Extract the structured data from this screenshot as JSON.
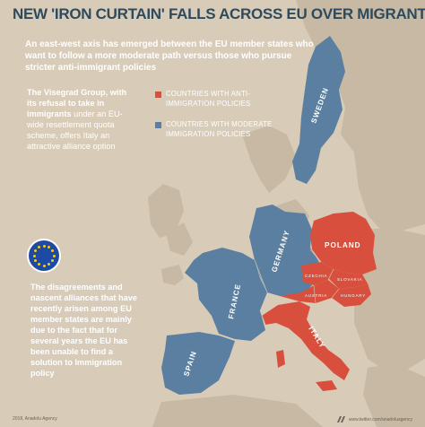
{
  "title": "NEW 'IRON CURTAIN' FALLS ACROSS EU OVER MIGRANT CRISIS",
  "subtitle": "An east-west axis has emerged between the EU member states who want to follow a more moderate path versus those who pursue stricter anti-immigrant policies",
  "visegrad": {
    "bold": "The Visegrad Group, with its refusal to take in immigrants",
    "rest": "under an EU-wide resettlement quota scheme, offers Italy an attractive alliance option"
  },
  "legend": [
    {
      "label": "COUNTRIES WITH ANTI-IMMIGRATION POLICIES",
      "color": "#d94f3d"
    },
    {
      "label": "COUNTRIES WITH MODERATE IMMIGRATION POLICIES",
      "color": "#5b7fa0"
    }
  ],
  "closing_text": "The disagreements and nascent alliances that have recently arisen among EU member states are mainly due to the fact that for several years the EU has been unable to find a solution to Immigration policy",
  "countries": {
    "sweden": "SWEDEN",
    "poland": "POLAND",
    "germany": "GERMANY",
    "czechia": "CZECHIA",
    "slovakia": "SLOVAKIA",
    "austria": "AUSTRIA",
    "hungary": "HUNGARY",
    "france": "FRANCE",
    "italy": "ITALY",
    "spain": "SPAIN"
  },
  "colors": {
    "anti": "#d94f3d",
    "moderate": "#5b7fa0",
    "land": "#c7b9a3",
    "sea": "#d8ccb9",
    "title": "#2e4a5c",
    "eu_flag": "#1e4aa3",
    "eu_stars": "#f5d000"
  },
  "footer": {
    "left": "2018, Anadolu Agency",
    "right": "www.twitter.com/anadoluagency"
  }
}
